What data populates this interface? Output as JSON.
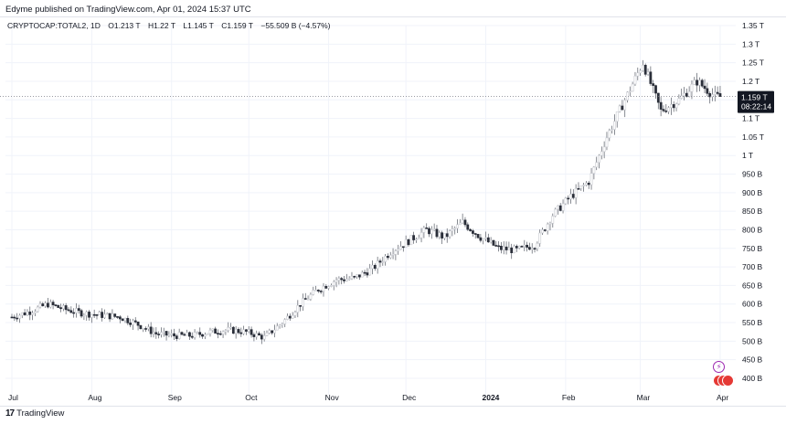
{
  "header": {
    "published_line": "Edyme published on TradingView.com, Apr 01, 2024 15:37 UTC"
  },
  "legend": {
    "symbol": "CRYPTOCAP:TOTAL2, 1D",
    "open": "O1.213 T",
    "high": "H1.22 T",
    "low": "L1.145 T",
    "close": "C1.159 T",
    "change": "−55.509 B (−4.57%)"
  },
  "price_badge": {
    "value": "1.159 T",
    "countdown": "08:22:14"
  },
  "footer": {
    "logo": "17",
    "brand": "TradingView"
  },
  "icons": [
    "lightning-icon",
    "flag-icons"
  ],
  "colors": {
    "candle_up": "#c7c9cf",
    "candle_down": "#2a2e39",
    "wick": "#6b6f78",
    "badge_bg": "#131722",
    "grid": "#f0f3fa",
    "price_line": "#787b86"
  },
  "chart_data": {
    "type": "candlestick",
    "title": "CRYPTOCAP:TOTAL2, 1D",
    "y_unit": "USD",
    "ylim": [
      380000000000,
      1370000000000
    ],
    "y_ticks": [
      "1.35 T",
      "1.3 T",
      "1.25 T",
      "1.2 T",
      "1.15 T",
      "1.1 T",
      "1.05 T",
      "1 T",
      "950 B",
      "900 B",
      "850 B",
      "800 B",
      "750 B",
      "700 B",
      "650 B",
      "600 B",
      "550 B",
      "500 B",
      "450 B",
      "400 B"
    ],
    "y_tick_values": [
      1.35,
      1.3,
      1.25,
      1.2,
      1.15,
      1.1,
      1.05,
      1.0,
      0.95,
      0.9,
      0.85,
      0.8,
      0.75,
      0.7,
      0.65,
      0.6,
      0.55,
      0.5,
      0.45,
      0.4
    ],
    "x_ticks": [
      "Jul",
      "Aug",
      "Sep",
      "Oct",
      "Nov",
      "Dec",
      "2024",
      "Feb",
      "Mar",
      "Apr"
    ],
    "x_tick_days": [
      0,
      31,
      62,
      92,
      123,
      153,
      184,
      215,
      244,
      275
    ],
    "grid": true,
    "last_close": 1.159,
    "ohlc_unit": "trillions",
    "weekly_path_days": [
      0,
      7,
      14,
      21,
      28,
      35,
      42,
      49,
      56,
      63,
      70,
      77,
      84,
      91,
      98,
      105,
      112,
      119,
      126,
      133,
      140,
      147,
      154,
      161,
      168,
      175,
      182,
      189,
      196,
      203,
      210,
      217,
      224,
      231,
      238,
      245,
      252,
      259,
      266,
      273
    ],
    "weekly_path_close": [
      0.565,
      0.58,
      0.6,
      0.585,
      0.575,
      0.57,
      0.565,
      0.545,
      0.52,
      0.515,
      0.515,
      0.525,
      0.53,
      0.525,
      0.51,
      0.55,
      0.6,
      0.64,
      0.665,
      0.67,
      0.695,
      0.74,
      0.77,
      0.8,
      0.78,
      0.82,
      0.78,
      0.75,
      0.745,
      0.76,
      0.84,
      0.89,
      0.93,
      1.05,
      1.15,
      1.25,
      1.12,
      1.15,
      1.2,
      1.159
    ]
  }
}
